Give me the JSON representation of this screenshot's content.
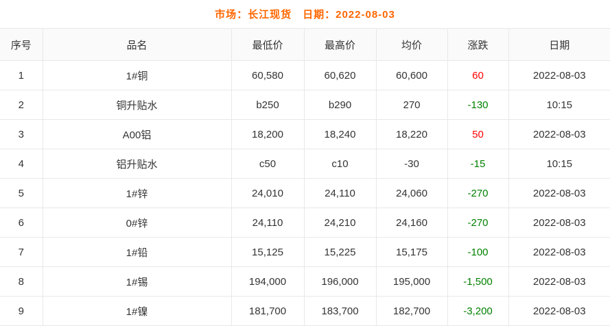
{
  "page": {
    "title": "市场：长江现货　日期：2022-08-03"
  },
  "colors": {
    "title": "#ff6600",
    "up": "#ff0000",
    "down": "#008000",
    "text": "#333333",
    "header_bg": "#fafafa",
    "border": "#e8e8e8"
  },
  "table": {
    "columns": [
      {
        "key": "seq",
        "label": "序号"
      },
      {
        "key": "name",
        "label": "品名"
      },
      {
        "key": "low",
        "label": "最低价"
      },
      {
        "key": "high",
        "label": "最高价"
      },
      {
        "key": "avg",
        "label": "均价"
      },
      {
        "key": "change",
        "label": "涨跌"
      },
      {
        "key": "date",
        "label": "日期"
      }
    ],
    "rows": [
      {
        "seq": "1",
        "name": "1#铜",
        "low": "60,580",
        "high": "60,620",
        "avg": "60,600",
        "change": "60",
        "trend": "up",
        "date": "2022-08-03"
      },
      {
        "seq": "2",
        "name": "铜升贴水",
        "low": "b250",
        "high": "b290",
        "avg": "270",
        "change": "-130",
        "trend": "down",
        "date": "10:15"
      },
      {
        "seq": "3",
        "name": "A00铝",
        "low": "18,200",
        "high": "18,240",
        "avg": "18,220",
        "change": "50",
        "trend": "up",
        "date": "2022-08-03"
      },
      {
        "seq": "4",
        "name": "铝升贴水",
        "low": "c50",
        "high": "c10",
        "avg": "-30",
        "change": "-15",
        "trend": "down",
        "date": "10:15"
      },
      {
        "seq": "5",
        "name": "1#锌",
        "low": "24,010",
        "high": "24,110",
        "avg": "24,060",
        "change": "-270",
        "trend": "down",
        "date": "2022-08-03"
      },
      {
        "seq": "6",
        "name": "0#锌",
        "low": "24,110",
        "high": "24,210",
        "avg": "24,160",
        "change": "-270",
        "trend": "down",
        "date": "2022-08-03"
      },
      {
        "seq": "7",
        "name": "1#铅",
        "low": "15,125",
        "high": "15,225",
        "avg": "15,175",
        "change": "-100",
        "trend": "down",
        "date": "2022-08-03"
      },
      {
        "seq": "8",
        "name": "1#锡",
        "low": "194,000",
        "high": "196,000",
        "avg": "195,000",
        "change": "-1,500",
        "trend": "down",
        "date": "2022-08-03"
      },
      {
        "seq": "9",
        "name": "1#镍",
        "low": "181,700",
        "high": "183,700",
        "avg": "182,700",
        "change": "-3,200",
        "trend": "down",
        "date": "2022-08-03"
      }
    ]
  }
}
